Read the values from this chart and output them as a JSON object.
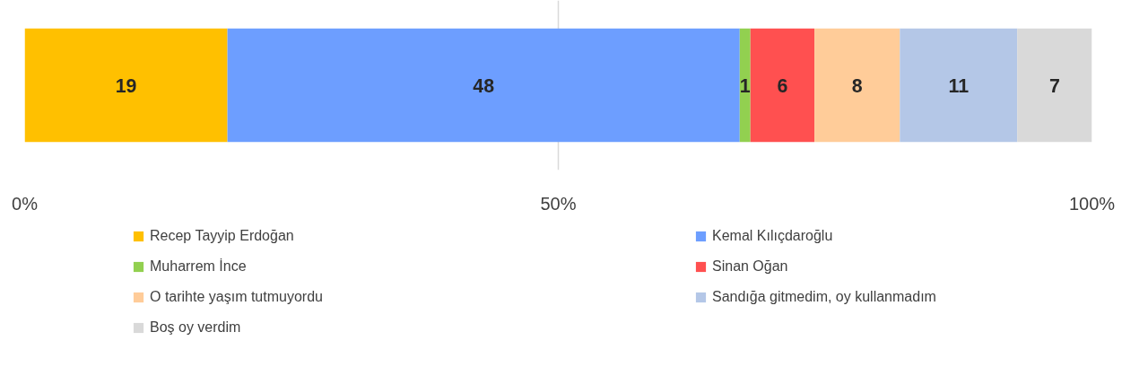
{
  "chart_data": {
    "type": "bar",
    "orientation": "horizontal",
    "stacked": true,
    "categories": [
      null
    ],
    "series": [
      {
        "name": "Recep Tayyip Erdoğan",
        "color": "#ffc000",
        "values": [
          19
        ]
      },
      {
        "name": "Kemal Kılıçdaroğlu",
        "color": "#6d9eff",
        "values": [
          48
        ]
      },
      {
        "name": "Muharrem İnce",
        "color": "#92d050",
        "values": [
          1
        ]
      },
      {
        "name": "Sinan Oğan",
        "color": "#ff5050",
        "values": [
          6
        ]
      },
      {
        "name": "O tarihte yaşım tutmuyordu",
        "color": "#ffcc99",
        "values": [
          8
        ]
      },
      {
        "name": "Sandığa gitmedim, oy kullanmadım",
        "color": "#b4c7e7",
        "values": [
          11
        ]
      },
      {
        "name": "Boş oy verdim",
        "color": "#d9d9d9",
        "values": [
          7
        ]
      }
    ],
    "xlim": [
      0,
      100
    ],
    "xticks": [
      {
        "value": 0,
        "label": "0%"
      },
      {
        "value": 50,
        "label": "50%"
      },
      {
        "value": 100,
        "label": "100%"
      }
    ],
    "grid": "x",
    "legend": "bottom",
    "data_labels": true
  }
}
